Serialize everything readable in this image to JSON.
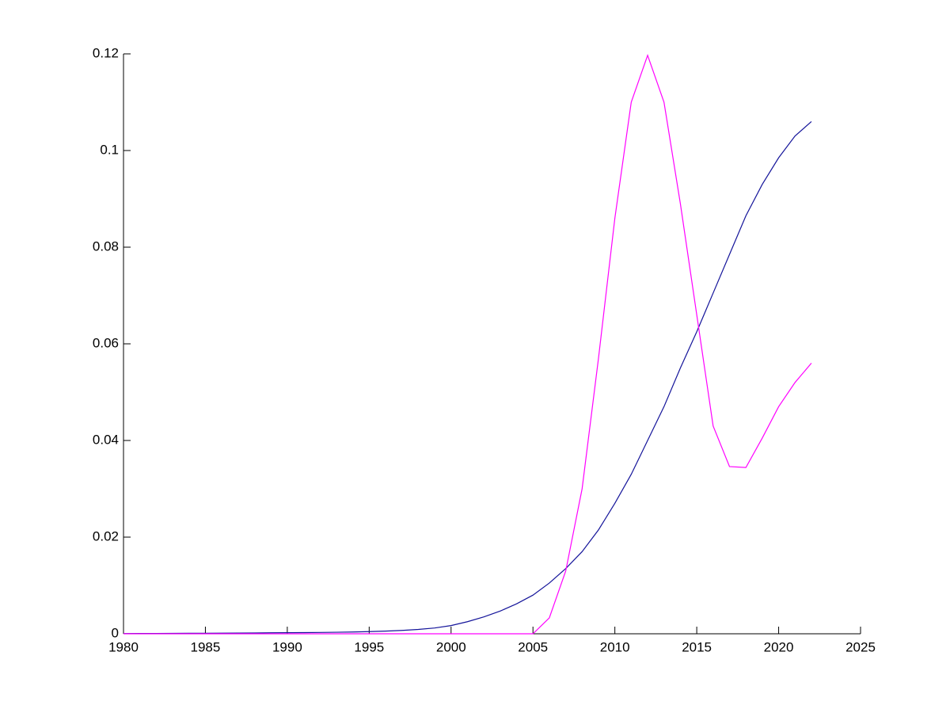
{
  "chart_data": {
    "type": "line",
    "x": [
      1980,
      1981,
      1982,
      1983,
      1984,
      1985,
      1986,
      1987,
      1988,
      1989,
      1990,
      1991,
      1992,
      1993,
      1994,
      1995,
      1996,
      1997,
      1998,
      1999,
      2000,
      2001,
      2002,
      2003,
      2004,
      2005,
      2006,
      2007,
      2008,
      2009,
      2010,
      2011,
      2012,
      2013,
      2014,
      2015,
      2016,
      2017,
      2018,
      2019,
      2020,
      2021,
      2022
    ],
    "series": [
      {
        "color": "#14149a",
        "values": [
          5e-05,
          6e-05,
          7e-05,
          8e-05,
          0.0001,
          0.00011,
          0.00013,
          0.00015,
          0.00017,
          0.0002,
          0.00022,
          0.00025,
          0.00028,
          0.00032,
          0.00037,
          0.00045,
          0.00055,
          0.0007,
          0.0009,
          0.0012,
          0.0017,
          0.0025,
          0.0035,
          0.0047,
          0.0062,
          0.008,
          0.0105,
          0.0135,
          0.017,
          0.0215,
          0.027,
          0.033,
          0.04,
          0.047,
          0.055,
          0.0625,
          0.0705,
          0.0785,
          0.0865,
          0.093,
          0.0985,
          0.103,
          0.106
        ]
      },
      {
        "color": "#ff00ff",
        "values": [
          0,
          0,
          0,
          0,
          0,
          0,
          0,
          0,
          0,
          0,
          0,
          0,
          0,
          0,
          0,
          0,
          0,
          0,
          0,
          0,
          0,
          0,
          0,
          0,
          0,
          0,
          0.0033,
          0.013,
          0.03,
          0.057,
          0.086,
          0.11,
          0.1197,
          0.11,
          0.089,
          0.066,
          0.043,
          0.0346,
          0.0344,
          0.0405,
          0.047,
          0.052,
          0.056
        ]
      }
    ],
    "xlim": [
      1980,
      2025
    ],
    "xticks": [
      1980,
      1985,
      1990,
      1995,
      2000,
      2005,
      2010,
      2015,
      2020,
      2025
    ],
    "ylim": [
      0,
      0.12
    ],
    "yticks": [
      0,
      0.02,
      0.04,
      0.06,
      0.08,
      0.1,
      0.12
    ]
  }
}
